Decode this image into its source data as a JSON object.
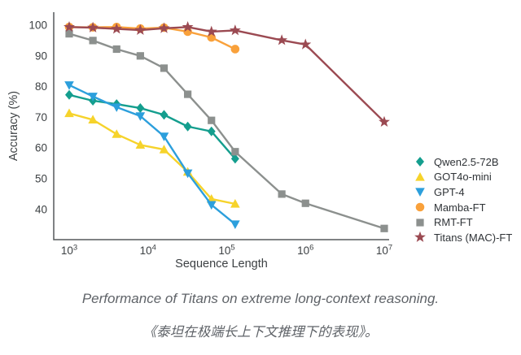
{
  "figure": {
    "caption_en": "Performance of Titans on extreme long-context reasoning.",
    "caption_zh": "《泰坦在极端长上下文推理下的表现》。"
  },
  "chart_data": {
    "type": "line",
    "title": "",
    "xlabel": "Sequence Length",
    "ylabel": "Accuracy (%)",
    "x_scale": "log10",
    "xlim": [
      630,
      12600000
    ],
    "ylim": [
      30,
      102
    ],
    "yticks": [
      40,
      50,
      60,
      70,
      80,
      90,
      100
    ],
    "xtick_exponents": [
      3,
      4,
      5,
      6,
      7
    ],
    "xtick_base": "10",
    "grid": false,
    "legend_position": "right",
    "axis_color": "#55585b",
    "tick_label_color": "#3c4043",
    "series": [
      {
        "name": "Qwen2.5-72B",
        "marker": "diamond",
        "color": "#149e8e",
        "x": [
          1000,
          2000,
          4000,
          8000,
          16000,
          32000,
          64000,
          128000
        ],
        "y": [
          77.3,
          75.4,
          74.3,
          73.0,
          70.8,
          67.0,
          65.4,
          56.5
        ]
      },
      {
        "name": "GOT4o-mini",
        "marker": "triangle-up",
        "color": "#f6d32b",
        "x": [
          1000,
          2000,
          4000,
          8000,
          16000,
          32000,
          64000,
          128000
        ],
        "y": [
          71.3,
          69.2,
          64.5,
          61.0,
          59.5,
          52.2,
          43.4,
          41.8
        ]
      },
      {
        "name": "GPT-4",
        "marker": "triangle-down",
        "color": "#2c9fdc",
        "x": [
          1000,
          2000,
          4000,
          8000,
          16000,
          32000,
          64000,
          128000
        ],
        "y": [
          80.5,
          76.8,
          73.3,
          70.4,
          63.8,
          51.8,
          41.5,
          35.2
        ]
      },
      {
        "name": "Mamba-FT",
        "marker": "circle",
        "color": "#f9a13b",
        "x": [
          1000,
          2000,
          4000,
          8000,
          16000,
          32000,
          64000,
          128000
        ],
        "y": [
          99.4,
          99.3,
          99.4,
          98.9,
          99.2,
          97.9,
          96.0,
          92.2
        ]
      },
      {
        "name": "RMT-FT",
        "marker": "square",
        "color": "#8c908e",
        "x": [
          1000,
          2000,
          4000,
          8000,
          16000,
          32000,
          64000,
          128000,
          500000,
          1000000,
          10000000
        ],
        "y": [
          97.2,
          95.0,
          92.2,
          90.0,
          86.0,
          77.5,
          69.0,
          58.8,
          45.0,
          42.0,
          33.8
        ]
      },
      {
        "name": "Titans (MAC)-FT",
        "marker": "star",
        "color": "#9b4a52",
        "x": [
          1000,
          2000,
          4000,
          8000,
          16000,
          32000,
          64000,
          128000,
          500000,
          1000000,
          10000000
        ],
        "y": [
          99.4,
          99.2,
          98.8,
          98.4,
          99.0,
          99.4,
          97.9,
          98.3,
          95.1,
          93.7,
          68.5
        ]
      }
    ]
  }
}
